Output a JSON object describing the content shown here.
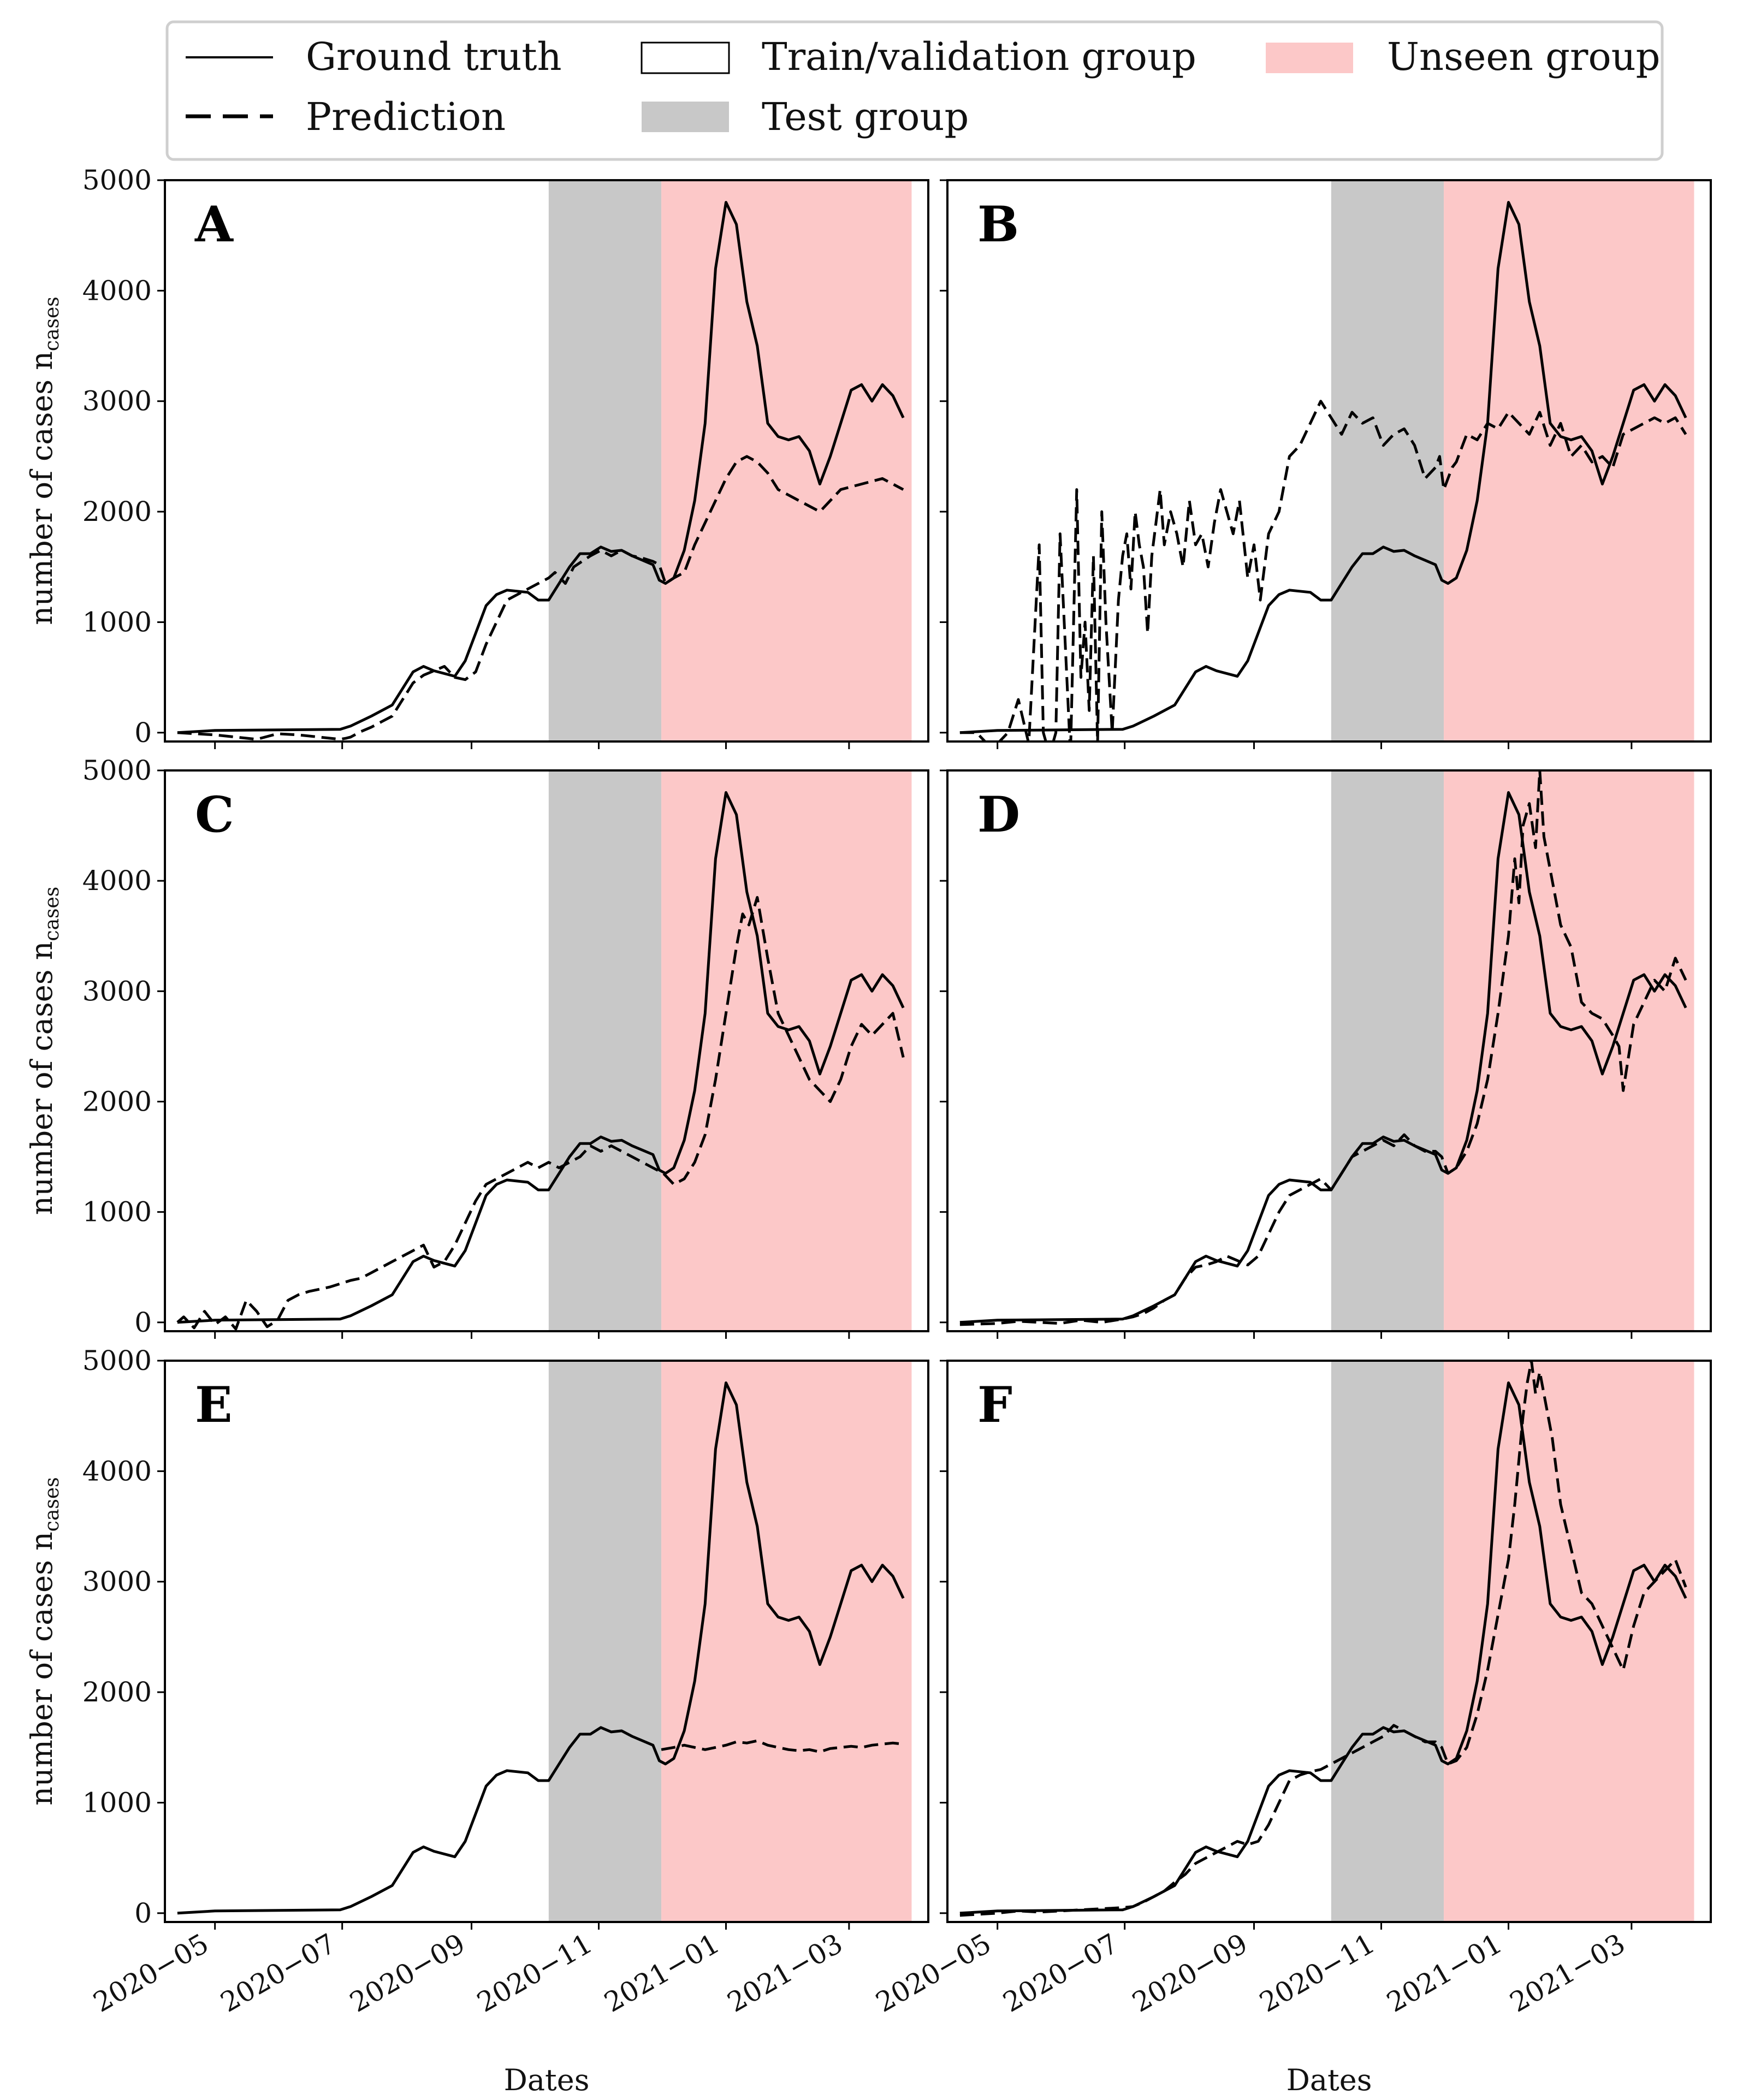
{
  "legend": {
    "ground_truth": "Ground truth",
    "prediction": "Prediction",
    "train_validation": "Train/validation group",
    "test_group": "Test group",
    "unseen_group": "Unseen group"
  },
  "colors": {
    "test_group": "#c8c8c8",
    "unseen_group": "#fcc8c8",
    "line": "#000000"
  },
  "chart_data": {
    "type": "line",
    "xlabel": "Dates",
    "ylabel": "number of cases n",
    "ylabel_sub": "cases",
    "xlim_days": [
      -24,
      342
    ],
    "ylim": [
      -80,
      5000
    ],
    "yticks": [
      0,
      1000,
      2000,
      3000,
      4000,
      5000
    ],
    "xtick_labels": [
      "2020−05",
      "2020−07",
      "2020−09",
      "2020−11",
      "2021−01",
      "2021−03"
    ],
    "xtick_days": [
      0,
      61,
      123,
      184,
      245,
      304
    ],
    "x_origin_date": "2020-05-01",
    "test_group_days": [
      160,
      214
    ],
    "unseen_group_days": [
      214,
      334
    ],
    "ground_truth": {
      "name": "Ground truth",
      "x_days": [
        -18,
        0,
        30,
        60,
        65,
        75,
        85,
        95,
        100,
        105,
        115,
        120,
        125,
        130,
        135,
        140,
        150,
        155,
        160,
        165,
        170,
        175,
        180,
        185,
        190,
        195,
        200,
        205,
        210,
        213,
        216,
        220,
        225,
        230,
        235,
        240,
        245,
        250,
        255,
        260,
        265,
        270,
        275,
        280,
        285,
        290,
        295,
        300,
        305,
        310,
        315,
        320,
        325,
        330
      ],
      "values": [
        0,
        20,
        25,
        30,
        60,
        150,
        250,
        550,
        600,
        560,
        510,
        650,
        900,
        1150,
        1250,
        1290,
        1270,
        1200,
        1200,
        1350,
        1500,
        1620,
        1620,
        1680,
        1640,
        1650,
        1600,
        1560,
        1520,
        1380,
        1350,
        1400,
        1650,
        2100,
        2800,
        4200,
        4800,
        4600,
        3900,
        3500,
        2800,
        2680,
        2650,
        2680,
        2550,
        2250,
        2500,
        2800,
        3100,
        3150,
        3000,
        3150,
        3050,
        2850
      ]
    },
    "panels": [
      {
        "label": "A",
        "prediction": {
          "x_days": [
            -18,
            0,
            10,
            20,
            30,
            40,
            50,
            60,
            63,
            65,
            70,
            75,
            80,
            85,
            90,
            95,
            100,
            105,
            110,
            115,
            120,
            125,
            130,
            135,
            140,
            150,
            155,
            160,
            163,
            168,
            172,
            176,
            180,
            185,
            190,
            195,
            200,
            205,
            210,
            213,
            216,
            220,
            225,
            230,
            235,
            240,
            245,
            250,
            255,
            260,
            265,
            270,
            275,
            280,
            290,
            300,
            310,
            320,
            325,
            330
          ],
          "values": [
            0,
            -20,
            -40,
            -60,
            -10,
            -20,
            -40,
            -60,
            -50,
            -40,
            10,
            50,
            100,
            150,
            300,
            450,
            520,
            560,
            600,
            500,
            480,
            550,
            800,
            1000,
            1200,
            1300,
            1350,
            1400,
            1450,
            1350,
            1500,
            1550,
            1600,
            1650,
            1600,
            1650,
            1600,
            1580,
            1550,
            1520,
            1350,
            1400,
            1450,
            1700,
            1900,
            2100,
            2300,
            2450,
            2500,
            2450,
            2350,
            2200,
            2150,
            2100,
            2000,
            2200,
            2250,
            2300,
            2250,
            2200
          ]
        }
      },
      {
        "label": "B",
        "prediction": {
          "x_days": [
            -18,
            -10,
            -5,
            0,
            5,
            10,
            15,
            20,
            22,
            25,
            28,
            30,
            32,
            35,
            38,
            40,
            42,
            44,
            46,
            48,
            50,
            52,
            55,
            58,
            60,
            62,
            64,
            66,
            68,
            70,
            72,
            74,
            76,
            78,
            80,
            83,
            86,
            89,
            92,
            95,
            98,
            101,
            104,
            107,
            110,
            113,
            116,
            120,
            123,
            126,
            130,
            135,
            140,
            145,
            150,
            155,
            160,
            165,
            170,
            175,
            180,
            185,
            190,
            195,
            200,
            205,
            210,
            212,
            214,
            216,
            218,
            220,
            225,
            230,
            235,
            240,
            245,
            250,
            255,
            260,
            265,
            270,
            275,
            280,
            285,
            290,
            295,
            300,
            305,
            310,
            315,
            320,
            325,
            330
          ],
          "values": [
            0,
            0,
            -100,
            -100,
            0,
            300,
            -100,
            1700,
            0,
            -200,
            0,
            1800,
            1000,
            -200,
            2200,
            500,
            1000,
            200,
            1600,
            -100,
            2000,
            1000,
            0,
            1200,
            1600,
            1800,
            1300,
            2000,
            1700,
            1500,
            900,
            1600,
            1900,
            2200,
            1700,
            2000,
            1800,
            1500,
            2100,
            1700,
            1800,
            1500,
            1900,
            2200,
            2000,
            1800,
            2100,
            1400,
            1700,
            1200,
            1800,
            2000,
            2500,
            2600,
            2800,
            3000,
            2850,
            2700,
            2900,
            2800,
            2850,
            2600,
            2700,
            2750,
            2600,
            2300,
            2400,
            2500,
            2200,
            2300,
            2400,
            2450,
            2700,
            2650,
            2800,
            2750,
            2900,
            2800,
            2700,
            2900,
            2600,
            2800,
            2500,
            2600,
            2450,
            2500,
            2400,
            2700,
            2750,
            2800,
            2850,
            2800,
            2850,
            2700
          ]
        }
      },
      {
        "label": "C",
        "prediction": {
          "x_days": [
            -18,
            -15,
            -10,
            -5,
            0,
            5,
            10,
            15,
            20,
            25,
            30,
            35,
            40,
            45,
            50,
            55,
            60,
            65,
            70,
            75,
            80,
            85,
            90,
            95,
            100,
            105,
            110,
            115,
            120,
            125,
            130,
            135,
            140,
            145,
            150,
            155,
            160,
            165,
            170,
            175,
            180,
            185,
            190,
            195,
            200,
            205,
            210,
            215,
            220,
            225,
            230,
            235,
            240,
            245,
            250,
            253,
            256,
            260,
            265,
            270,
            275,
            280,
            285,
            290,
            295,
            300,
            305,
            310,
            315,
            320,
            325,
            330
          ],
          "values": [
            0,
            50,
            -50,
            100,
            -20,
            50,
            -60,
            200,
            100,
            -40,
            20,
            200,
            250,
            280,
            300,
            320,
            350,
            380,
            400,
            450,
            500,
            550,
            600,
            650,
            700,
            500,
            550,
            700,
            900,
            1100,
            1250,
            1300,
            1350,
            1400,
            1450,
            1400,
            1450,
            1400,
            1450,
            1500,
            1600,
            1550,
            1600,
            1550,
            1500,
            1450,
            1400,
            1350,
            1250,
            1300,
            1450,
            1700,
            2200,
            2800,
            3400,
            3700,
            3600,
            3850,
            3300,
            2800,
            2600,
            2400,
            2200,
            2100,
            2000,
            2200,
            2500,
            2700,
            2600,
            2700,
            2800,
            2400
          ]
        }
      },
      {
        "label": "D",
        "prediction": {
          "x_days": [
            -18,
            0,
            10,
            20,
            30,
            40,
            50,
            60,
            65,
            70,
            75,
            80,
            85,
            90,
            95,
            100,
            105,
            110,
            115,
            120,
            125,
            130,
            135,
            140,
            145,
            150,
            155,
            160,
            165,
            170,
            175,
            180,
            185,
            190,
            195,
            200,
            205,
            210,
            213,
            216,
            220,
            225,
            230,
            235,
            240,
            245,
            248,
            250,
            252,
            255,
            258,
            260,
            262,
            265,
            270,
            275,
            280,
            285,
            290,
            295,
            298,
            300,
            305,
            310,
            315,
            320,
            325,
            330
          ],
          "values": [
            -20,
            -10,
            10,
            0,
            -10,
            20,
            0,
            30,
            50,
            80,
            130,
            200,
            250,
            400,
            500,
            520,
            550,
            600,
            560,
            520,
            600,
            800,
            1000,
            1150,
            1200,
            1250,
            1300,
            1200,
            1350,
            1500,
            1550,
            1600,
            1650,
            1600,
            1700,
            1600,
            1550,
            1550,
            1500,
            1350,
            1400,
            1550,
            1800,
            2200,
            2800,
            3500,
            4200,
            3800,
            4500,
            4700,
            4300,
            5000,
            4400,
            4100,
            3600,
            3400,
            2900,
            2800,
            2750,
            2600,
            2500,
            2100,
            2700,
            2900,
            3100,
            3000,
            3300,
            3100
          ]
        }
      },
      {
        "label": "E",
        "prediction": {
          "x_days": [
            214,
            220,
            225,
            230,
            235,
            240,
            245,
            250,
            255,
            260,
            265,
            270,
            275,
            280,
            285,
            290,
            295,
            300,
            305,
            310,
            315,
            320,
            325,
            330
          ],
          "values": [
            1480,
            1500,
            1520,
            1500,
            1480,
            1500,
            1520,
            1550,
            1540,
            1560,
            1520,
            1500,
            1480,
            1470,
            1480,
            1460,
            1490,
            1500,
            1510,
            1500,
            1520,
            1530,
            1540,
            1530
          ]
        }
      },
      {
        "label": "F",
        "prediction": {
          "x_days": [
            -18,
            0,
            10,
            20,
            30,
            40,
            50,
            60,
            65,
            70,
            75,
            80,
            85,
            90,
            95,
            100,
            105,
            110,
            115,
            120,
            125,
            130,
            135,
            140,
            145,
            150,
            155,
            160,
            165,
            170,
            175,
            180,
            185,
            190,
            195,
            200,
            205,
            210,
            213,
            216,
            220,
            225,
            230,
            235,
            240,
            245,
            248,
            250,
            252,
            254,
            256,
            258,
            260,
            263,
            266,
            270,
            275,
            280,
            285,
            290,
            295,
            300,
            305,
            310,
            315,
            320,
            325,
            330
          ],
          "values": [
            -20,
            0,
            20,
            10,
            20,
            30,
            40,
            50,
            60,
            100,
            150,
            200,
            280,
            350,
            450,
            500,
            550,
            600,
            650,
            620,
            650,
            800,
            1000,
            1200,
            1250,
            1280,
            1300,
            1350,
            1400,
            1450,
            1500,
            1550,
            1600,
            1700,
            1650,
            1600,
            1550,
            1550,
            1500,
            1350,
            1380,
            1500,
            1800,
            2200,
            2700,
            3200,
            3700,
            4100,
            4500,
            4800,
            5000,
            4700,
            4900,
            4600,
            4300,
            3700,
            3300,
            2900,
            2800,
            2600,
            2400,
            2200,
            2600,
            2900,
            3000,
            3100,
            3200,
            2950
          ]
        }
      }
    ]
  }
}
